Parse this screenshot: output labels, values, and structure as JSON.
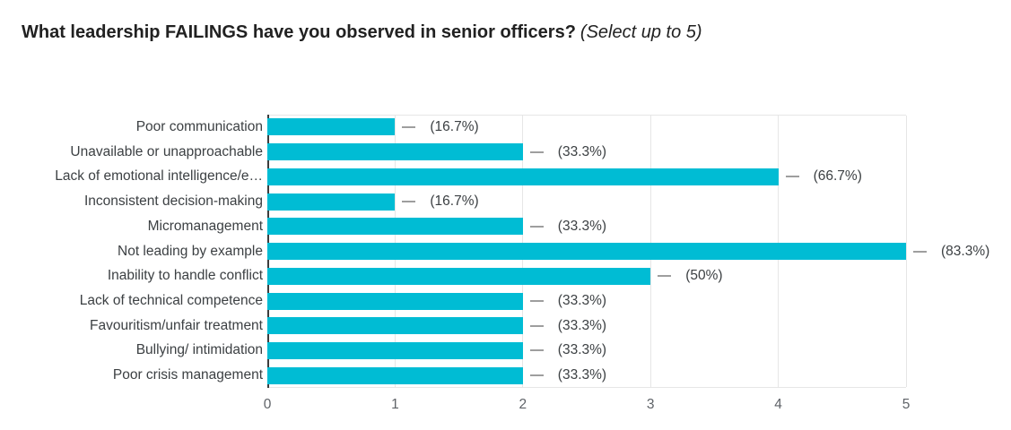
{
  "header": {
    "title": "What leadership FAILINGS have you observed in senior officers?",
    "subtitle": "(Select up to 5)"
  },
  "chart_data": {
    "type": "bar",
    "orientation": "horizontal",
    "title": "What leadership FAILINGS have you observed in senior officers? (Select up to 5)",
    "categories": [
      "Poor communication",
      "Unavailable or unapproachable",
      "Lack of emotional intelligence/e…",
      "Inconsistent decision-making",
      "Micromanagement",
      "Not leading by example",
      "Inability to handle conflict",
      "Lack of technical competence",
      "Favouritism/unfair treatment",
      "Bullying/ intimidation",
      "Poor crisis management"
    ],
    "values": [
      1,
      2,
      4,
      1,
      2,
      5,
      3,
      2,
      2,
      2,
      2
    ],
    "percent_labels": [
      "(16.7%)",
      "(33.3%)",
      "(66.7%)",
      "(16.7%)",
      "(33.3%)",
      "(83.3%)",
      "(50%)",
      "(33.3%)",
      "(33.3%)",
      "(33.3%)",
      "(33.3%)"
    ],
    "x_ticks": [
      "0",
      "1",
      "2",
      "3",
      "4",
      "5"
    ],
    "xlim": [
      0,
      5
    ],
    "grid": true,
    "legend": "none",
    "colors": {
      "bar": "#00bcd4",
      "gridline": "#e6e6e6",
      "axis_line": "#3c3c3c",
      "leader_dash": "#9e9e9e",
      "category_label": "#3c4043",
      "percent_label": "#3c4043",
      "tick_label": "#5f6368",
      "title": "#212121"
    }
  }
}
